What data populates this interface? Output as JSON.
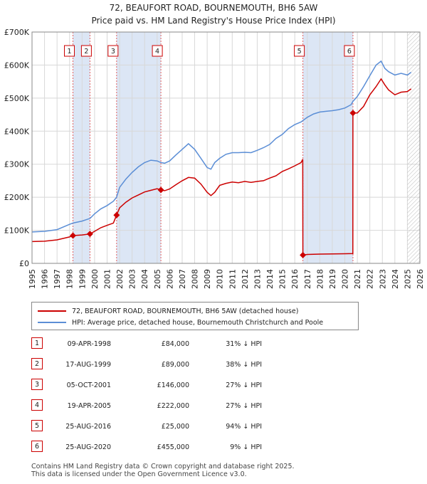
{
  "title_line1": "72, BEAUFORT ROAD, BOURNEMOUTH, BH6 5AW",
  "title_line2": "Price paid vs. HM Land Registry's House Price Index (HPI)",
  "legend": {
    "property": "72, BEAUFORT ROAD, BOURNEMOUTH, BH6 5AW (detached house)",
    "hpi": "HPI: Average price, detached house, Bournemouth Christchurch and Poole"
  },
  "colors": {
    "property": "#cc0000",
    "hpi": "#5b8ed6",
    "shade": "#dce6f5",
    "grid": "#d8d8d8",
    "marker_border": "#cc0000"
  },
  "sales": [
    {
      "n": "1",
      "date": "09-APR-1998",
      "price": "£84,000",
      "hpi": "31% ↓ HPI"
    },
    {
      "n": "2",
      "date": "17-AUG-1999",
      "price": "£89,000",
      "hpi": "38% ↓ HPI"
    },
    {
      "n": "3",
      "date": "05-OCT-2001",
      "price": "£146,000",
      "hpi": "27% ↓ HPI"
    },
    {
      "n": "4",
      "date": "19-APR-2005",
      "price": "£222,000",
      "hpi": "27% ↓ HPI"
    },
    {
      "n": "5",
      "date": "25-AUG-2016",
      "price": "£25,000",
      "hpi": "94% ↓ HPI"
    },
    {
      "n": "6",
      "date": "25-AUG-2020",
      "price": "£455,000",
      "hpi": "9% ↓ HPI"
    }
  ],
  "footer_line1": "Contains HM Land Registry data © Crown copyright and database right 2025.",
  "footer_line2": "This data is licensed under the Open Government Licence v3.0.",
  "chart_data": {
    "type": "line",
    "title": "72, BEAUFORT ROAD, BOURNEMOUTH, BH6 5AW — Price paid vs. HM Land Registry's House Price Index (HPI)",
    "xlabel": "",
    "ylabel": "",
    "xlim": [
      1995,
      2026
    ],
    "ylim": [
      0,
      700000
    ],
    "y_ticks": [
      0,
      100000,
      200000,
      300000,
      400000,
      500000,
      600000,
      700000
    ],
    "y_tick_labels": [
      "£0",
      "£100K",
      "£200K",
      "£300K",
      "£400K",
      "£500K",
      "£600K",
      "£700K"
    ],
    "x_ticks": [
      1995,
      1996,
      1997,
      1998,
      1999,
      2000,
      2001,
      2002,
      2003,
      2004,
      2005,
      2006,
      2007,
      2008,
      2009,
      2010,
      2011,
      2012,
      2013,
      2014,
      2015,
      2016,
      2017,
      2018,
      2019,
      2020,
      2021,
      2022,
      2023,
      2024,
      2025,
      2026
    ],
    "x_tick_labels": [
      "1995",
      "1996",
      "1997",
      "1998",
      "1999",
      "2000",
      "2001",
      "2002",
      "2003",
      "2004",
      "2005",
      "2006",
      "2007",
      "2008",
      "2009",
      "2010",
      "2011",
      "2012",
      "2013",
      "2014",
      "2015",
      "2016",
      "2017",
      "2018",
      "2019",
      "2020",
      "2021",
      "2022",
      "2023",
      "2024",
      "2025",
      "2026"
    ],
    "shaded_ranges": [
      [
        1998.27,
        1999.63
      ],
      [
        2001.76,
        2005.3
      ],
      [
        2016.65,
        2020.65
      ]
    ],
    "hatched_from": 2025.0,
    "sale_markers": [
      {
        "label": "1",
        "x": 1998.27,
        "y": 84000
      },
      {
        "label": "2",
        "x": 1999.63,
        "y": 89000
      },
      {
        "label": "3",
        "x": 2001.76,
        "y": 146000
      },
      {
        "label": "4",
        "x": 2005.3,
        "y": 222000
      },
      {
        "label": "5",
        "x": 2016.65,
        "y": 25000
      },
      {
        "label": "6",
        "x": 2020.65,
        "y": 455000
      }
    ],
    "series": [
      {
        "name": "72, BEAUFORT ROAD, BOURNEMOUTH, BH6 5AW (detached house)",
        "x": [
          1995.0,
          1996.0,
          1997.0,
          1998.0,
          1998.27,
          1999.0,
          1999.63,
          2000.0,
          2000.5,
          2001.0,
          2001.5,
          2001.76,
          2002.0,
          2002.5,
          2003.0,
          2003.5,
          2004.0,
          2004.5,
          2005.0,
          2005.3,
          2005.6,
          2006.0,
          2006.5,
          2007.0,
          2007.5,
          2008.0,
          2008.5,
          2009.0,
          2009.3,
          2009.6,
          2010.0,
          2010.5,
          2011.0,
          2011.5,
          2012.0,
          2012.5,
          2013.0,
          2013.5,
          2014.0,
          2014.5,
          2015.0,
          2015.5,
          2016.0,
          2016.5,
          2016.64,
          2016.65,
          2017.0,
          2018.0,
          2019.0,
          2020.0,
          2020.64,
          2020.65,
          2021.0,
          2021.5,
          2022.0,
          2022.5,
          2022.9,
          2023.2,
          2023.5,
          2024.0,
          2024.5,
          2025.0,
          2025.3
        ],
        "y": [
          66000,
          67000,
          71000,
          80000,
          84000,
          86000,
          89000,
          97000,
          108000,
          115000,
          122000,
          146000,
          168000,
          185000,
          198000,
          207000,
          216000,
          221000,
          226000,
          222000,
          220000,
          225000,
          238000,
          250000,
          260000,
          258000,
          240000,
          215000,
          205000,
          215000,
          236000,
          242000,
          246000,
          244000,
          248000,
          245000,
          248000,
          250000,
          258000,
          265000,
          278000,
          286000,
          295000,
          305000,
          315000,
          25000,
          27000,
          28000,
          28500,
          29000,
          29500,
          455000,
          455000,
          475000,
          510000,
          535000,
          558000,
          540000,
          525000,
          510000,
          518000,
          520000,
          528000
        ]
      },
      {
        "name": "HPI: Average price, detached house, Bournemouth Christchurch and Poole",
        "x": [
          1995.0,
          1996.0,
          1997.0,
          1998.0,
          1998.27,
          1999.0,
          1999.63,
          2000.0,
          2000.5,
          2001.0,
          2001.5,
          2001.76,
          2002.0,
          2002.5,
          2003.0,
          2003.5,
          2004.0,
          2004.5,
          2005.0,
          2005.3,
          2005.6,
          2006.0,
          2006.5,
          2007.0,
          2007.5,
          2008.0,
          2008.5,
          2009.0,
          2009.3,
          2009.6,
          2010.0,
          2010.5,
          2011.0,
          2011.5,
          2012.0,
          2012.5,
          2013.0,
          2013.5,
          2014.0,
          2014.5,
          2015.0,
          2015.5,
          2016.0,
          2016.5,
          2016.65,
          2017.0,
          2017.5,
          2018.0,
          2018.5,
          2019.0,
          2019.5,
          2020.0,
          2020.5,
          2020.65,
          2021.0,
          2021.5,
          2022.0,
          2022.5,
          2022.9,
          2023.2,
          2023.5,
          2024.0,
          2024.5,
          2025.0,
          2025.3
        ],
        "y": [
          95000,
          97000,
          102000,
          118000,
          122000,
          128000,
          136000,
          150000,
          165000,
          175000,
          188000,
          200000,
          230000,
          255000,
          275000,
          292000,
          305000,
          312000,
          310000,
          305000,
          303000,
          310000,
          328000,
          345000,
          362000,
          345000,
          318000,
          290000,
          285000,
          305000,
          318000,
          330000,
          335000,
          335000,
          336000,
          335000,
          342000,
          350000,
          360000,
          378000,
          390000,
          408000,
          420000,
          428000,
          432000,
          442000,
          452000,
          458000,
          460000,
          462000,
          465000,
          470000,
          480000,
          490000,
          505000,
          535000,
          568000,
          600000,
          612000,
          590000,
          580000,
          570000,
          575000,
          570000,
          578000
        ]
      }
    ]
  }
}
